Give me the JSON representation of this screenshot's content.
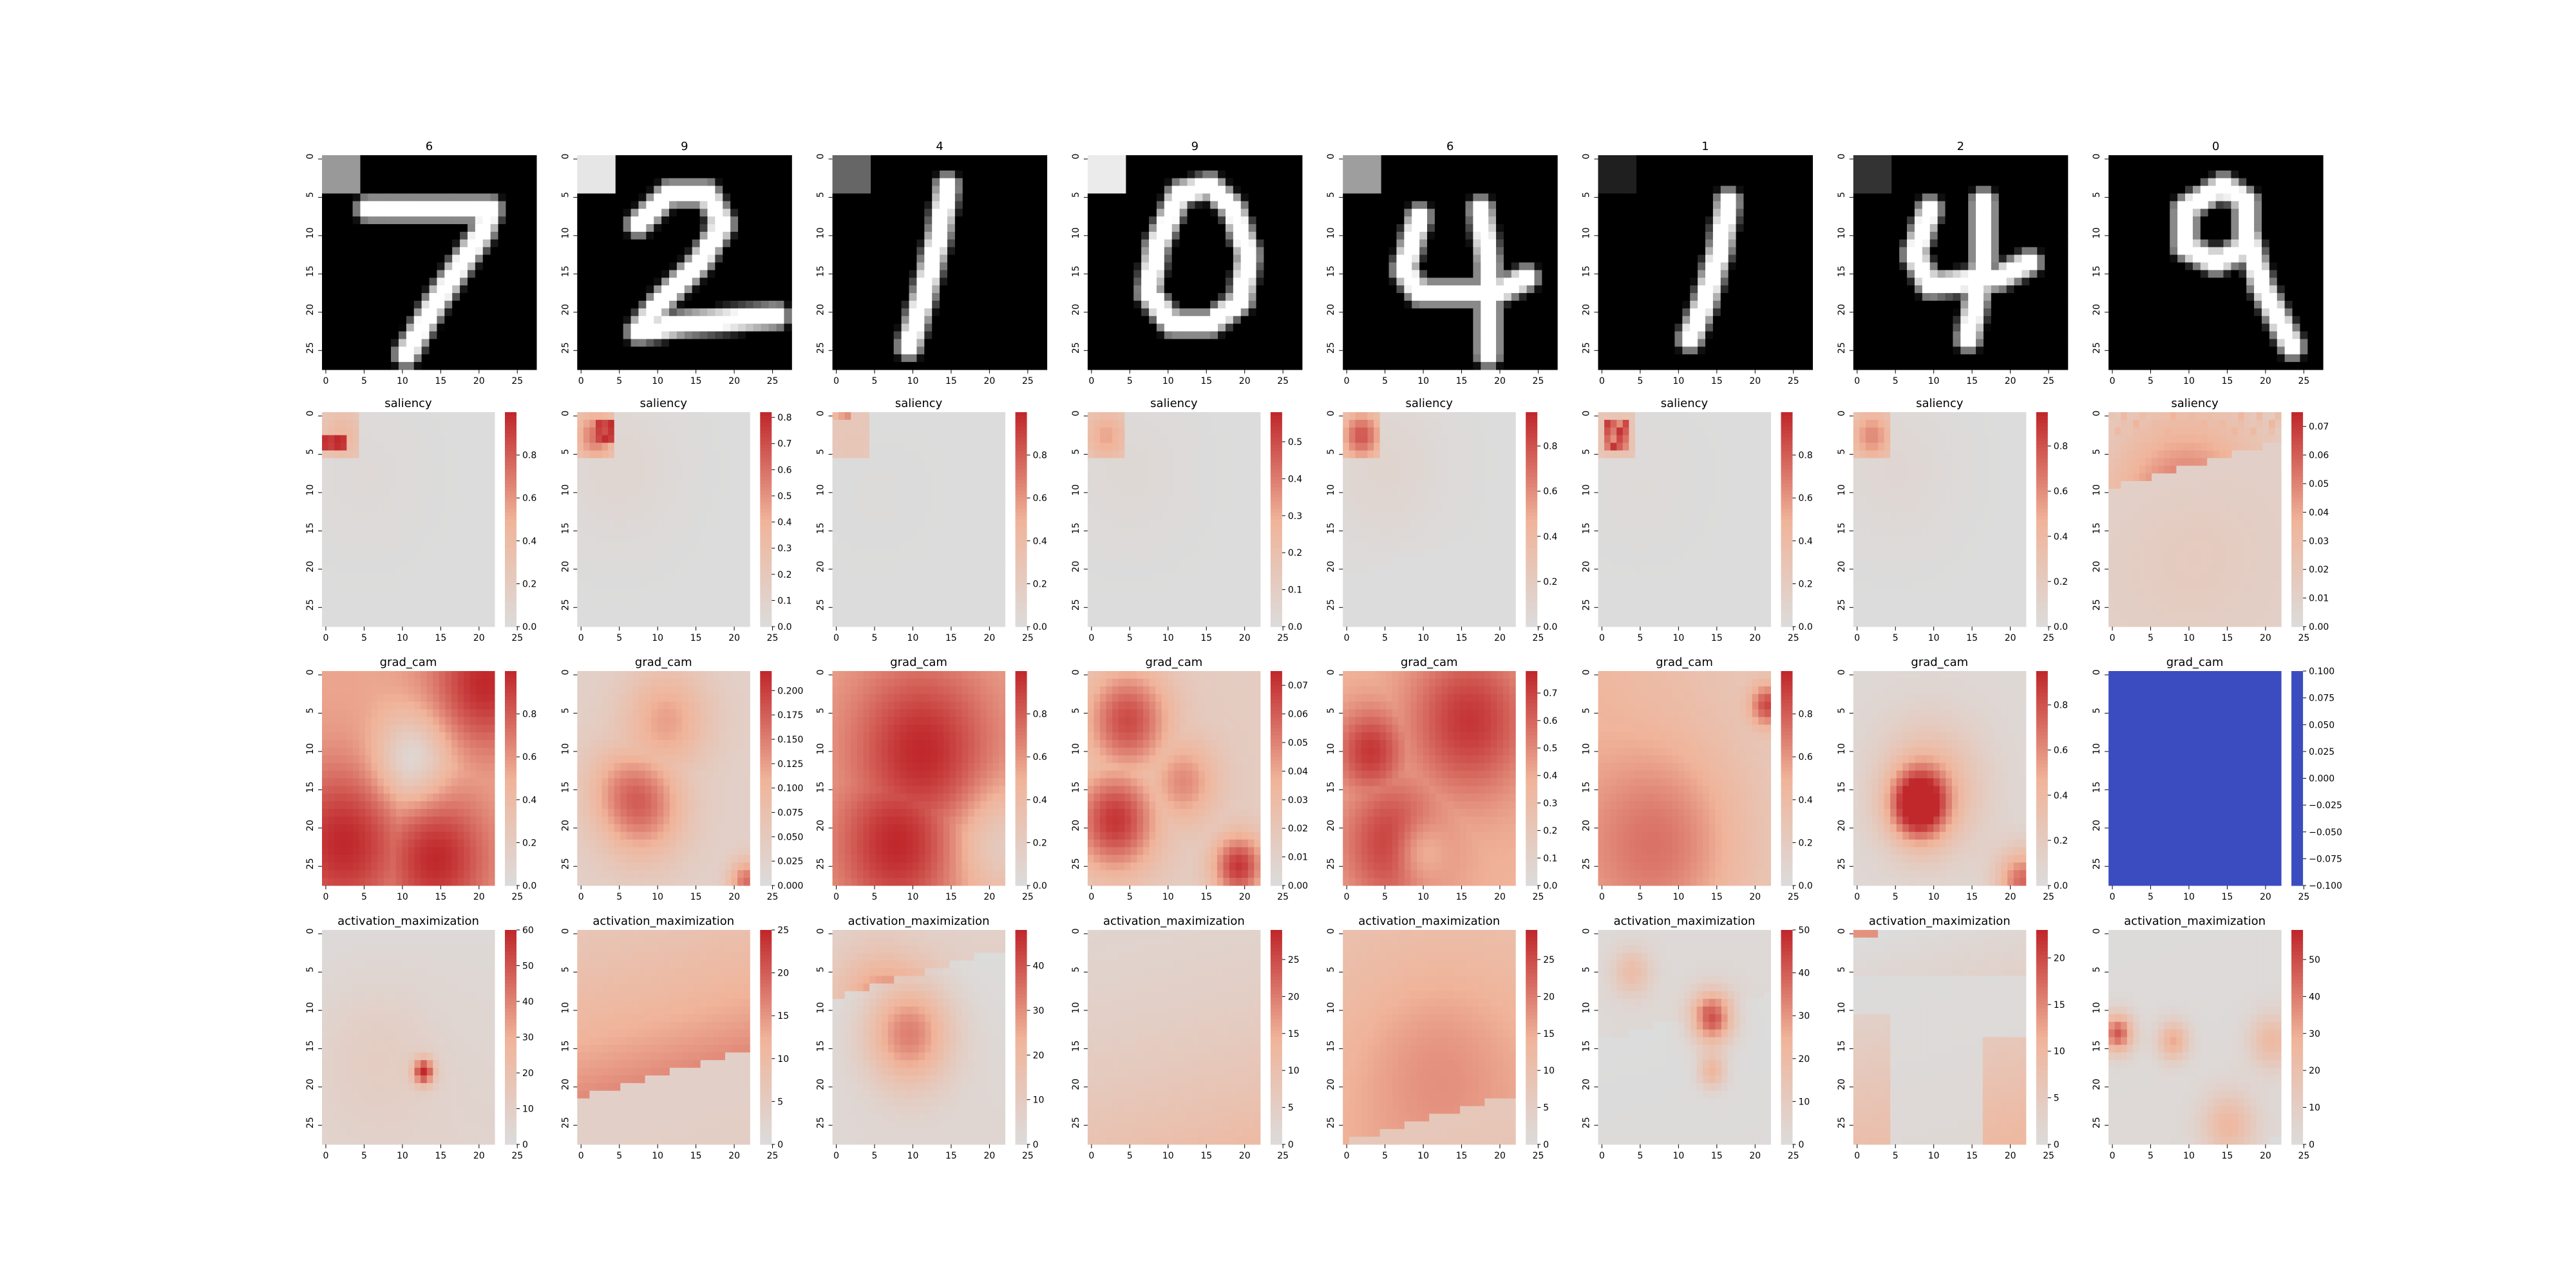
{
  "figure": {
    "columns": 8,
    "row_titles": {
      "saliency": "saliency",
      "grad_cam": "grad_cam",
      "activation_maximization": "activation_maximization"
    }
  },
  "chart_data": {
    "type": "heatmap",
    "image_size": 28,
    "axis_ticks": [
      "0",
      "5",
      "10",
      "15",
      "20",
      "25"
    ],
    "tick_values": [
      0,
      5,
      10,
      15,
      20,
      25
    ],
    "colormap": {
      "input": "gray",
      "saliency": "white-to-red",
      "grad_cam": "coolwarm-upper",
      "activation_maximization": "white-to-red"
    },
    "colors": {
      "low": "#dcdcdc",
      "mid": "#f0b49a",
      "high": "#c0282c",
      "blue": "#3b4cc0"
    },
    "columns": [
      {
        "predicted_label": "6",
        "digit": "7",
        "patch_gray": 0.6,
        "saliency": {
          "ticks": [
            "0.0",
            "0.2",
            "0.4",
            "0.6",
            "0.8"
          ],
          "tick_values": [
            0,
            0.2,
            0.4,
            0.6,
            0.8
          ],
          "vmin": 0,
          "vmax": 1.0
        },
        "grad_cam": {
          "ticks": [
            "0.0",
            "0.2",
            "0.4",
            "0.6",
            "0.8"
          ],
          "tick_values": [
            0,
            0.2,
            0.4,
            0.6,
            0.8
          ],
          "vmin": 0,
          "vmax": 1.0
        },
        "activation_maximization": {
          "ticks": [
            "0",
            "10",
            "20",
            "30",
            "40",
            "50",
            "60"
          ],
          "tick_values": [
            0,
            10,
            20,
            30,
            40,
            50,
            60
          ],
          "vmin": 0,
          "vmax": 60
        }
      },
      {
        "predicted_label": "9",
        "digit": "2",
        "patch_gray": 0.9,
        "saliency": {
          "ticks": [
            "0.0",
            "0.1",
            "0.2",
            "0.3",
            "0.4",
            "0.5",
            "0.6",
            "0.7",
            "0.8"
          ],
          "tick_values": [
            0,
            0.1,
            0.2,
            0.3,
            0.4,
            0.5,
            0.6,
            0.7,
            0.8
          ],
          "vmin": 0,
          "vmax": 0.82
        },
        "grad_cam": {
          "ticks": [
            "0.000",
            "0.025",
            "0.050",
            "0.075",
            "0.100",
            "0.125",
            "0.150",
            "0.175",
            "0.200"
          ],
          "tick_values": [
            0,
            0.025,
            0.05,
            0.075,
            0.1,
            0.125,
            0.15,
            0.175,
            0.2
          ],
          "vmin": 0,
          "vmax": 0.22
        },
        "activation_maximization": {
          "ticks": [
            "0",
            "5",
            "10",
            "15",
            "20",
            "25"
          ],
          "tick_values": [
            0,
            5,
            10,
            15,
            20,
            25
          ],
          "vmin": 0,
          "vmax": 25
        }
      },
      {
        "predicted_label": "4",
        "digit": "1",
        "patch_gray": 0.4,
        "saliency": {
          "ticks": [
            "0.0",
            "0.2",
            "0.4",
            "0.6",
            "0.8"
          ],
          "tick_values": [
            0,
            0.2,
            0.4,
            0.6,
            0.8
          ],
          "vmin": 0,
          "vmax": 1.0
        },
        "grad_cam": {
          "ticks": [
            "0.0",
            "0.2",
            "0.4",
            "0.6",
            "0.8"
          ],
          "tick_values": [
            0,
            0.2,
            0.4,
            0.6,
            0.8
          ],
          "vmin": 0,
          "vmax": 1.0
        },
        "activation_maximization": {
          "ticks": [
            "0",
            "10",
            "20",
            "30",
            "40"
          ],
          "tick_values": [
            0,
            10,
            20,
            30,
            40
          ],
          "vmin": 0,
          "vmax": 48
        }
      },
      {
        "predicted_label": "9",
        "digit": "0",
        "patch_gray": 0.92,
        "saliency": {
          "ticks": [
            "0.0",
            "0.1",
            "0.2",
            "0.3",
            "0.4",
            "0.5"
          ],
          "tick_values": [
            0,
            0.1,
            0.2,
            0.3,
            0.4,
            0.5
          ],
          "vmin": 0,
          "vmax": 0.58
        },
        "grad_cam": {
          "ticks": [
            "0.00",
            "0.01",
            "0.02",
            "0.03",
            "0.04",
            "0.05",
            "0.06",
            "0.07"
          ],
          "tick_values": [
            0,
            0.01,
            0.02,
            0.03,
            0.04,
            0.05,
            0.06,
            0.07
          ],
          "vmin": 0,
          "vmax": 0.075
        },
        "activation_maximization": {
          "ticks": [
            "0",
            "5",
            "10",
            "15",
            "20",
            "25"
          ],
          "tick_values": [
            0,
            5,
            10,
            15,
            20,
            25
          ],
          "vmin": 0,
          "vmax": 29
        }
      },
      {
        "predicted_label": "6",
        "digit": "4",
        "patch_gray": 0.62,
        "saliency": {
          "ticks": [
            "0.0",
            "0.2",
            "0.4",
            "0.6",
            "0.8"
          ],
          "tick_values": [
            0,
            0.2,
            0.4,
            0.6,
            0.8
          ],
          "vmin": 0,
          "vmax": 0.95
        },
        "grad_cam": {
          "ticks": [
            "0.0",
            "0.1",
            "0.2",
            "0.3",
            "0.4",
            "0.5",
            "0.6",
            "0.7"
          ],
          "tick_values": [
            0,
            0.1,
            0.2,
            0.3,
            0.4,
            0.5,
            0.6,
            0.7
          ],
          "vmin": 0,
          "vmax": 0.78
        },
        "activation_maximization": {
          "ticks": [
            "0",
            "5",
            "10",
            "15",
            "20",
            "25"
          ],
          "tick_values": [
            0,
            5,
            10,
            15,
            20,
            25
          ],
          "vmin": 0,
          "vmax": 29
        }
      },
      {
        "predicted_label": "1",
        "digit": "1",
        "patch_gray": 0.12,
        "saliency": {
          "ticks": [
            "0.0",
            "0.2",
            "0.4",
            "0.6",
            "0.8"
          ],
          "tick_values": [
            0,
            0.2,
            0.4,
            0.6,
            0.8
          ],
          "vmin": 0,
          "vmax": 1.0
        },
        "grad_cam": {
          "ticks": [
            "0.0",
            "0.2",
            "0.4",
            "0.6",
            "0.8"
          ],
          "tick_values": [
            0,
            0.2,
            0.4,
            0.6,
            0.8
          ],
          "vmin": 0,
          "vmax": 1.0
        },
        "activation_maximization": {
          "ticks": [
            "0",
            "10",
            "20",
            "30",
            "40",
            "50"
          ],
          "tick_values": [
            0,
            10,
            20,
            30,
            40,
            50
          ],
          "vmin": 0,
          "vmax": 50
        }
      },
      {
        "predicted_label": "2",
        "digit": "4",
        "patch_gray": 0.2,
        "saliency": {
          "ticks": [
            "0.0",
            "0.2",
            "0.4",
            "0.6",
            "0.8"
          ],
          "tick_values": [
            0,
            0.2,
            0.4,
            0.6,
            0.8
          ],
          "vmin": 0,
          "vmax": 0.95
        },
        "grad_cam": {
          "ticks": [
            "0.0",
            "0.2",
            "0.4",
            "0.6",
            "0.8"
          ],
          "tick_values": [
            0,
            0.2,
            0.4,
            0.6,
            0.8
          ],
          "vmin": 0,
          "vmax": 0.95
        },
        "activation_maximization": {
          "ticks": [
            "0",
            "5",
            "10",
            "15",
            "20"
          ],
          "tick_values": [
            0,
            5,
            10,
            15,
            20
          ],
          "vmin": 0,
          "vmax": 23
        }
      },
      {
        "predicted_label": "0",
        "digit": "9",
        "patch_gray": 0.0,
        "saliency": {
          "ticks": [
            "0.00",
            "0.01",
            "0.02",
            "0.03",
            "0.04",
            "0.05",
            "0.06",
            "0.07"
          ],
          "tick_values": [
            0,
            0.01,
            0.02,
            0.03,
            0.04,
            0.05,
            0.06,
            0.07
          ],
          "vmin": 0,
          "vmax": 0.075
        },
        "grad_cam": {
          "ticks": [
            "−0.100",
            "−0.075",
            "−0.050",
            "−0.025",
            "0.000",
            "0.025",
            "0.050",
            "0.075",
            "0.100"
          ],
          "tick_values": [
            -0.1,
            -0.075,
            -0.05,
            -0.025,
            0,
            0.025,
            0.05,
            0.075,
            0.1
          ],
          "vmin": -0.1,
          "vmax": 0.1,
          "uniform_blue": true
        },
        "activation_maximization": {
          "ticks": [
            "0",
            "10",
            "20",
            "30",
            "40",
            "50"
          ],
          "tick_values": [
            0,
            10,
            20,
            30,
            40,
            50
          ],
          "vmin": 0,
          "vmax": 58
        }
      }
    ]
  }
}
